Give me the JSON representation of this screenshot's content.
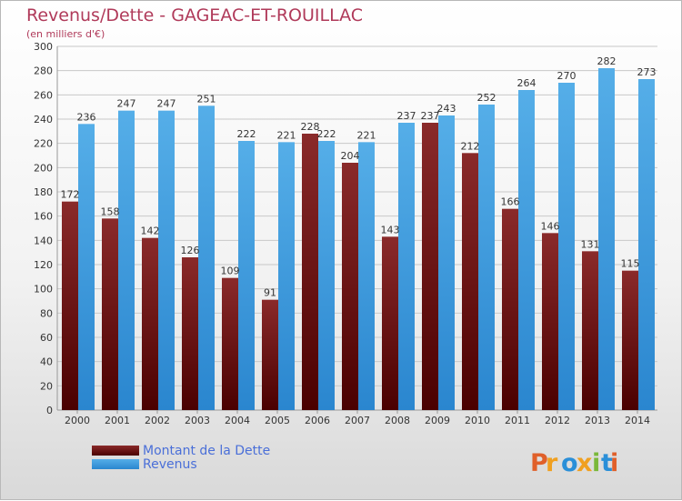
{
  "chart_data": {
    "type": "bar",
    "title": "Revenus/Dette - GAGEAC-ET-ROUILLAC",
    "subtitle": "(en milliers d'€)",
    "categories": [
      "2000",
      "2001",
      "2002",
      "2003",
      "2004",
      "2005",
      "2006",
      "2007",
      "2008",
      "2009",
      "2010",
      "2011",
      "2012",
      "2013",
      "2014"
    ],
    "series": [
      {
        "name": "Montant de la Dette",
        "color": "#7a1a1a",
        "values": [
          172,
          158,
          142,
          126,
          109,
          91,
          228,
          204,
          143,
          237,
          212,
          166,
          146,
          131,
          115
        ]
      },
      {
        "name": "Revenus",
        "color": "#3d9be0",
        "values": [
          236,
          247,
          247,
          251,
          222,
          221,
          222,
          221,
          237,
          243,
          252,
          264,
          270,
          282,
          273
        ]
      }
    ],
    "ylim": [
      0,
      300
    ],
    "yticks": [
      0,
      20,
      40,
      60,
      80,
      100,
      120,
      140,
      160,
      180,
      200,
      220,
      240,
      260,
      280,
      300
    ],
    "grid": true,
    "legend_position": "bottom-left"
  },
  "logo": {
    "text": "Proxiti",
    "letters": [
      {
        "char": "P",
        "color": "#e0602a"
      },
      {
        "char": "r",
        "color": "#f0a020"
      },
      {
        "char": "o",
        "color": "#2a8fd8"
      },
      {
        "char": "x",
        "color": "#f0a020"
      },
      {
        "char": "i",
        "color": "#7ab83a"
      },
      {
        "char": "t",
        "color": "#2a8fd8"
      },
      {
        "char": "i",
        "color": "#e0602a"
      }
    ]
  }
}
